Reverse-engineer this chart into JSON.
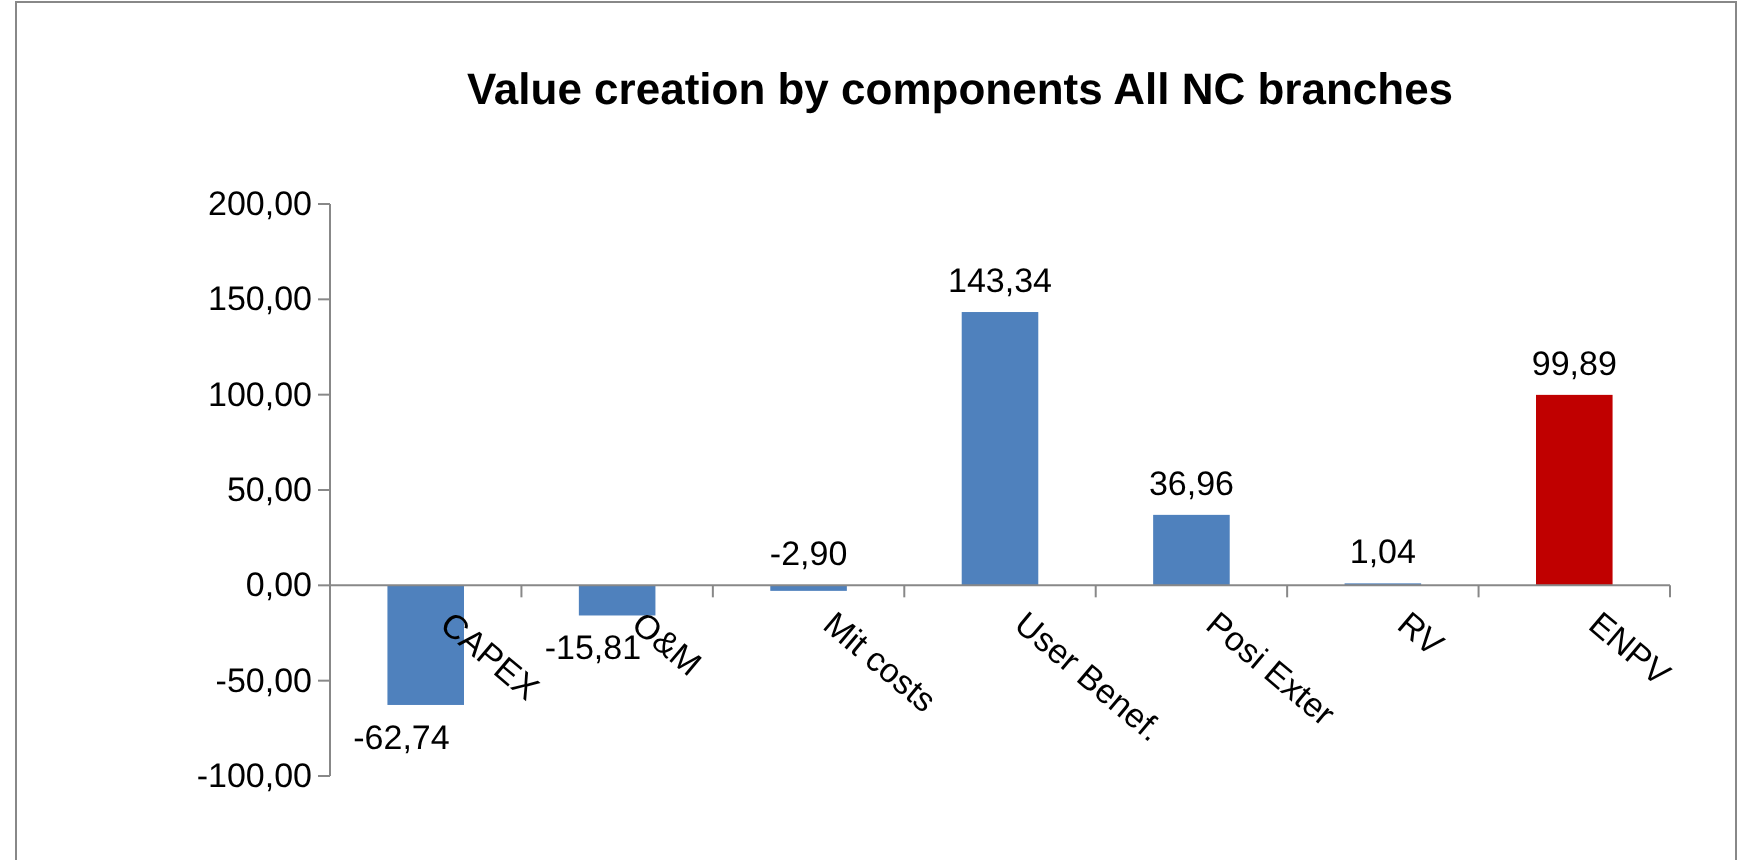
{
  "chart_data": {
    "type": "bar",
    "title": "Value creation by components All NC branches",
    "categories": [
      "CAPEX",
      "O&M",
      "Mit costs",
      "User Benef.",
      "Posi Exter",
      "RV",
      "ENPV"
    ],
    "values": [
      -62.74,
      -15.81,
      -2.9,
      143.34,
      36.96,
      1.04,
      99.89
    ],
    "colors": [
      "#4f81bd",
      "#4f81bd",
      "#4f81bd",
      "#4f81bd",
      "#4f81bd",
      "#4f81bd",
      "#c00000"
    ],
    "value_labels": [
      "-62,74",
      "-15,81",
      "-2,90",
      "143,34",
      "36,96",
      "1,04",
      "99,89"
    ],
    "ylim": [
      -100,
      200
    ],
    "yticks": [
      {
        "value": -100,
        "label": "-100,00"
      },
      {
        "value": -50,
        "label": "-50,00"
      },
      {
        "value": 0,
        "label": "0,00"
      },
      {
        "value": 50,
        "label": "50,00"
      },
      {
        "value": 100,
        "label": "100,00"
      },
      {
        "value": 150,
        "label": "150,00"
      },
      {
        "value": 200,
        "label": "200,00"
      }
    ],
    "grid": false
  }
}
